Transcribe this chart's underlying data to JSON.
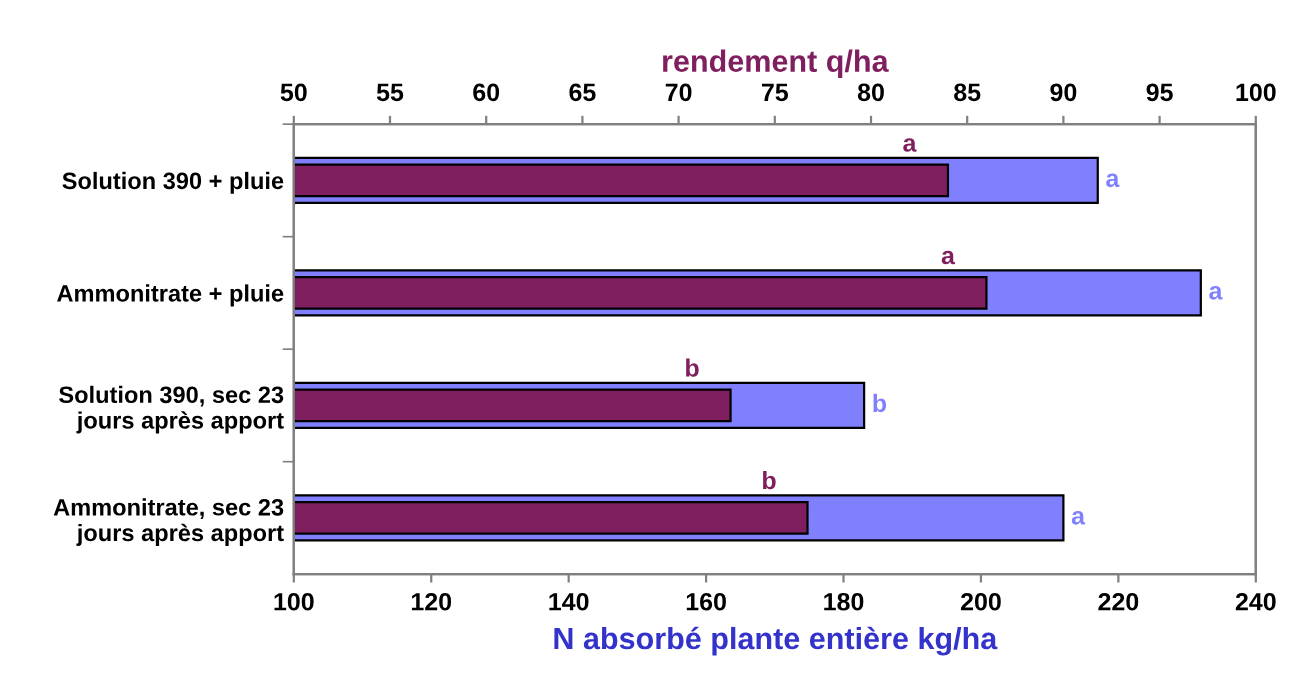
{
  "chart_data": {
    "type": "bar",
    "orientation": "horizontal",
    "categories": [
      "Solution 390 + pluie",
      "Ammonitrate + pluie",
      "Solution 390, sec 23\njours après apport",
      "Ammonitrate, sec 23\njours après apport"
    ],
    "xlabel": "N absorbé plante entière kg/ha",
    "x2label": "rendement q/ha",
    "xlim": [
      100,
      240
    ],
    "xticks": [
      100,
      120,
      140,
      160,
      180,
      200,
      220,
      240
    ],
    "x2lim": [
      50,
      100
    ],
    "x2ticks": [
      50,
      55,
      60,
      65,
      70,
      75,
      80,
      85,
      90,
      95,
      100
    ],
    "series": [
      {
        "color": "#8080ff",
        "values": [
          217,
          232,
          183,
          212
        ],
        "value_labels": [
          "a",
          "a",
          "b",
          "a"
        ]
      },
      {
        "color": "#7f1f5f",
        "axis": "x2",
        "values": [
          84,
          86,
          72.7,
          76.7
        ],
        "value_labels": [
          "a",
          "a",
          "b",
          "b"
        ]
      }
    ],
    "grid": false,
    "legend": false
  }
}
